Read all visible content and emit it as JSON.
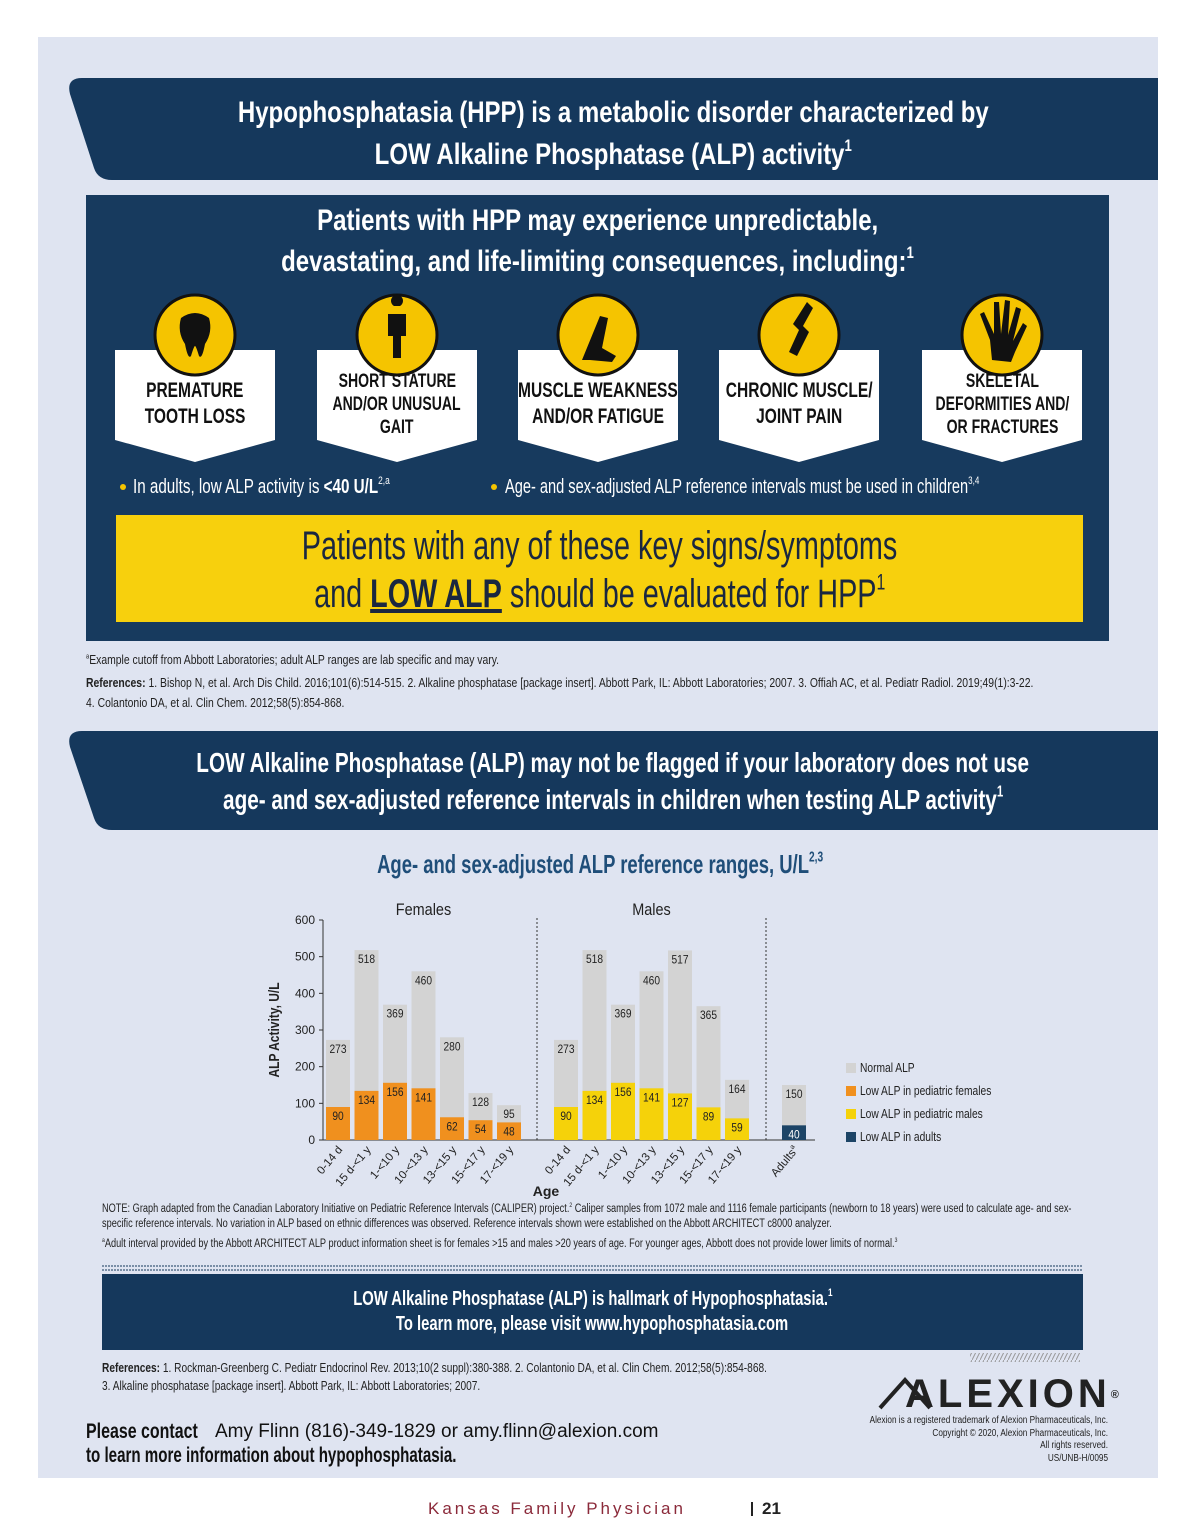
{
  "header": {
    "title_lines": [
      "Hypophosphatasia (HPP) is a metabolic disorder characterized by",
      "LOW Alkaline Phosphatase (ALP) activity"
    ],
    "title_sup": "1"
  },
  "consequences": {
    "heading_lines": [
      "Patients with HPP may experience unpredictable,",
      "devastating, and life-limiting consequences, including:"
    ],
    "heading_sup": "1",
    "items": [
      {
        "lines": [
          "PREMATURE",
          "TOOTH LOSS"
        ]
      },
      {
        "lines": [
          "SHORT STATURE",
          "AND/OR UNUSUAL",
          "GAIT"
        ]
      },
      {
        "lines": [
          "MUSCLE WEAKNESS",
          "AND/OR FATIGUE"
        ]
      },
      {
        "lines": [
          "CHRONIC MUSCLE/",
          "JOINT PAIN"
        ]
      },
      {
        "lines": [
          "SKELETAL",
          "DEFORMITIES AND/",
          "OR FRACTURES"
        ]
      }
    ],
    "bullets": [
      {
        "text": "In adults, low ALP activity is ",
        "emphasis": "<40 U/L",
        "sup": "2,a"
      },
      {
        "text": "Age- and sex-adjusted ALP reference intervals must be used in children",
        "sup": "3,4"
      }
    ],
    "callout": {
      "line1": "Patients with any of these key signs/symptoms",
      "line2_pre": "and ",
      "line2_emphasis": "LOW ALP",
      "line2_post": " should be evaluated for HPP",
      "sup": "1"
    }
  },
  "footnotes": {
    "a_mark": "a",
    "a_text": "Example cutoff from Abbott Laboratories; adult ALP ranges are lab specific and may vary.",
    "references_label": "References:",
    "references": [
      "1. Bishop N, et al. Arch Dis Child. 2016;101(6):514-515. 2. Alkaline phosphatase [package insert]. Abbott Park, IL: Abbott Laboratories; 2007. 3. Offiah AC, et al. Pediatr Radiol. 2019;49(1):3-22.",
      "4. Colantonio DA, et al. Clin Chem. 2012;58(5):854-868."
    ]
  },
  "banner": {
    "lines": [
      "LOW Alkaline Phosphatase (ALP) may not be flagged if your laboratory does not use",
      "age- and sex-adjusted reference intervals in children when testing ALP activity"
    ],
    "sup": "1"
  },
  "chart": {
    "type": "bar",
    "title": "Age- and sex-adjusted ALP reference ranges, U/L",
    "title_sup": "2,3",
    "y_label": "ALP Activity, U/L",
    "x_label": "Age",
    "ylim": [
      0,
      600
    ],
    "yticks": [
      0,
      100,
      200,
      300,
      400,
      500,
      600
    ],
    "normal_color": "#d3d3d3",
    "groups": [
      {
        "name": "Females",
        "color": "#f0901e",
        "categories": [
          "0-14 d",
          "15 d-<1 y",
          "1-<10 y",
          "10-<13 y",
          "13-<15 y",
          "15-<17 y",
          "17-<19 y"
        ],
        "upper": [
          273,
          518,
          369,
          460,
          280,
          128,
          95
        ],
        "lower": [
          90,
          134,
          156,
          141,
          62,
          54,
          48
        ]
      },
      {
        "name": "Males",
        "color": "#f5d20a",
        "categories": [
          "0-14 d",
          "15 d-<1 y",
          "1-<10 y",
          "10-<13 y",
          "13-<15 y",
          "15-<17 y",
          "17-<19 y"
        ],
        "upper": [
          273,
          518,
          369,
          460,
          517,
          365,
          164
        ],
        "lower": [
          90,
          134,
          156,
          141,
          127,
          89,
          59
        ]
      }
    ],
    "adults": {
      "category": "Adults",
      "category_sup": "a",
      "color": "#1c4466",
      "upper": 150,
      "lower": 40
    },
    "legend": [
      "Normal ALP",
      "Low ALP in pediatric females",
      "Low ALP in pediatric males",
      "Low ALP in adults"
    ]
  },
  "note": {
    "text1": "NOTE: Graph adapted from the Canadian Laboratory Initiative on Pediatric Reference Intervals (CALIPER) project.",
    "sup1": "2",
    "text2": " Caliper samples from 1072 male and 1116 female participants (newborn to 18 years) were used to calculate age- and sex-specific reference intervals. No variation in ALP based on ethnic differences was observed. Reference intervals shown were established on the Abbott ARCHITECT c8000 analyzer.",
    "a_mark": "a",
    "a_text": "Adult interval provided by the Abbott ARCHITECT ALP product information sheet is for females >15 and males >20 years of age. For younger ages, Abbott does not provide lower limits of normal.",
    "a_sup": "3"
  },
  "cta": {
    "line1": "LOW Alkaline Phosphatase (ALP) is hallmark of Hypophosphatasia.",
    "sup": "1",
    "line2": "To learn more, please visit www.hypophosphatasia.com"
  },
  "references2": {
    "label": "References:",
    "lines": [
      " 1. Rockman-Greenberg C. Pediatr Endocrinol Rev. 2013;10(2 suppl):380-388. 2. Colantonio DA, et al. Clin Chem. 2012;58(5):854-868.",
      "3. Alkaline phosphatase [package insert]. Abbott Park, IL: Abbott Laboratories; 2007."
    ]
  },
  "company": {
    "logo": "ALEXION",
    "logo_mark": "®",
    "lines": [
      "Alexion is a registered trademark of Alexion Pharmaceuticals, Inc.",
      "Copyright © 2020, Alexion Pharmaceuticals, Inc.",
      "All rights reserved.",
      "US/UNB-H/0095"
    ]
  },
  "contact": {
    "lead": "Please contact",
    "person": "Amy Flinn (816)-349-1829 or amy.flinn@alexion.com",
    "line2": "to learn more information about hypophosphatasia."
  },
  "footer": {
    "publication": "Kansas Family Physician",
    "page": "21"
  }
}
